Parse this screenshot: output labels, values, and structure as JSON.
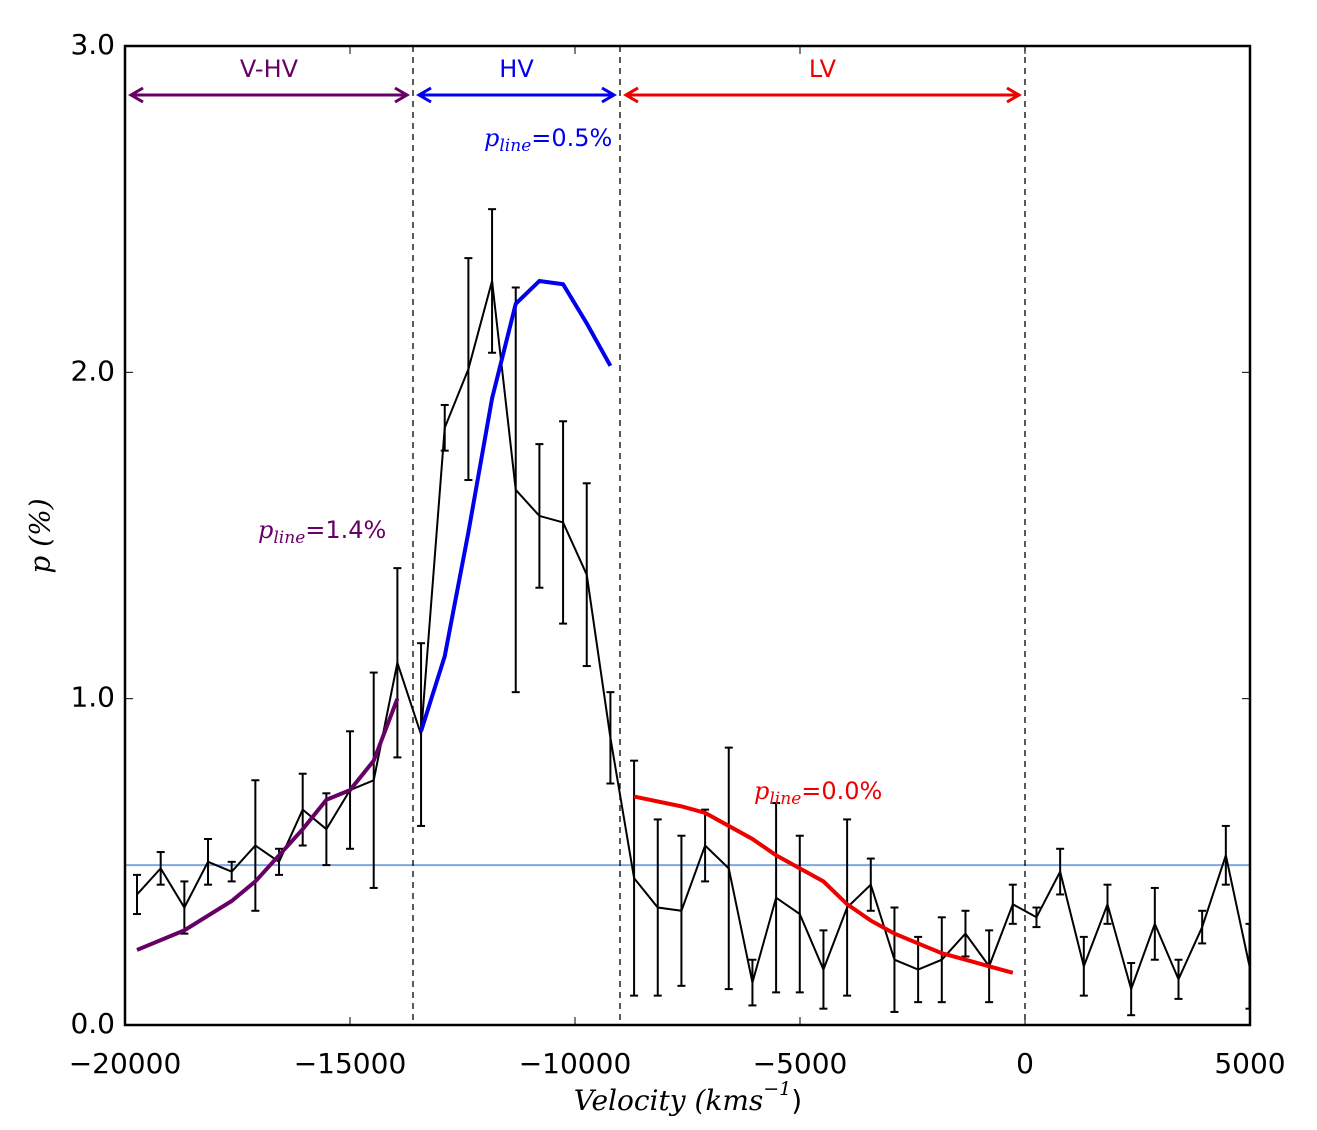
{
  "chart_data": {
    "type": "line",
    "xlabel": {
      "text": "Velocity (kms",
      "superscript": "−1",
      "tail": ")"
    },
    "ylabel": "p (%)",
    "xlim": [
      -20000,
      5000
    ],
    "ylim": [
      0,
      3
    ],
    "xticks": [
      {
        "value": -20000,
        "label": "−20000"
      },
      {
        "value": -15000,
        "label": "−15000"
      },
      {
        "value": -10000,
        "label": "−10000"
      },
      {
        "value": -5000,
        "label": "−5000"
      },
      0,
      5000
    ],
    "yticks": [
      {
        "value": 0,
        "label": "0.0"
      },
      {
        "value": 1,
        "label": "1.0"
      },
      {
        "value": 2,
        "label": "2.0"
      },
      {
        "value": 3,
        "label": "3.0"
      }
    ],
    "observed": {
      "color": "#000000",
      "x": [
        -19733,
        -19207,
        -18681,
        -18155,
        -17629,
        -17103,
        -16577,
        -16051,
        -15525,
        -14999,
        -14473,
        -13947,
        -13421,
        -12895,
        -12369,
        -11843,
        -11317,
        -10791,
        -10265,
        -9739,
        -9213,
        -8687,
        -8161,
        -7635,
        -7109,
        -6583,
        -6057,
        -5531,
        -5005,
        -4479,
        -3953,
        -3427,
        -2901,
        -2375,
        -1849,
        -1323,
        -797,
        -271,
        255,
        781,
        1307,
        1833,
        2359,
        2885,
        3411,
        3937,
        4463,
        4989
      ],
      "values": [
        0.4,
        0.48,
        0.36,
        0.5,
        0.47,
        0.55,
        0.5,
        0.66,
        0.6,
        0.72,
        0.75,
        1.11,
        0.89,
        1.83,
        2.01,
        2.28,
        1.64,
        1.56,
        1.54,
        1.38,
        0.88,
        0.45,
        0.36,
        0.35,
        0.55,
        0.48,
        0.13,
        0.39,
        0.34,
        0.17,
        0.36,
        0.43,
        0.2,
        0.17,
        0.2,
        0.28,
        0.18,
        0.37,
        0.33,
        0.47,
        0.18,
        0.37,
        0.11,
        0.31,
        0.14,
        0.3,
        0.52,
        0.18
      ],
      "errors": [
        0.06,
        0.05,
        0.08,
        0.07,
        0.03,
        0.2,
        0.04,
        0.11,
        0.11,
        0.18,
        0.33,
        0.29,
        0.28,
        0.07,
        0.34,
        0.22,
        0.62,
        0.22,
        0.31,
        0.28,
        0.14,
        0.36,
        0.27,
        0.23,
        0.11,
        0.37,
        0.07,
        0.29,
        0.24,
        0.12,
        0.27,
        0.08,
        0.16,
        0.1,
        0.13,
        0.07,
        0.11,
        0.06,
        0.03,
        0.07,
        0.09,
        0.06,
        0.08,
        0.11,
        0.06,
        0.05,
        0.09,
        0.13
      ]
    },
    "models": [
      {
        "color": "#660066",
        "x": [
          -19733,
          -18681,
          -17629,
          -17103,
          -16577,
          -16051,
          -15525,
          -14999,
          -14473,
          -13947
        ],
        "values": [
          0.23,
          0.29,
          0.38,
          0.44,
          0.52,
          0.6,
          0.69,
          0.72,
          0.81,
          1.0
        ]
      },
      {
        "color": "#0000ee",
        "x": [
          -13421,
          -12895,
          -12369,
          -11843,
          -11317,
          -10791,
          -10265,
          -9739,
          -9213
        ],
        "values": [
          0.9,
          1.13,
          1.51,
          1.92,
          2.21,
          2.28,
          2.27,
          2.15,
          2.02
        ]
      },
      {
        "color": "#ee0000",
        "x": [
          -8687,
          -7635,
          -7109,
          -6583,
          -6057,
          -5531,
          -5005,
          -4479,
          -3953,
          -3427,
          -2901,
          -2375,
          -1849,
          -1323,
          -797,
          -271
        ],
        "values": [
          0.7,
          0.67,
          0.65,
          0.61,
          0.57,
          0.52,
          0.48,
          0.44,
          0.37,
          0.32,
          0.28,
          0.25,
          0.22,
          0.2,
          0.18,
          0.16
        ]
      }
    ],
    "hline": {
      "value": 0.49,
      "color": "#7fa8e0"
    },
    "vlines": [
      -13600,
      -9000,
      0
    ],
    "regions": [
      {
        "label": "V-HV",
        "color": "#660066"
      },
      {
        "label": "HV",
        "color": "#0000ee"
      },
      {
        "label": "LV",
        "color": "#ee0000"
      }
    ],
    "annotations": [
      {
        "symbol": "p",
        "subscript": "line",
        "text": "=1.4%",
        "color": "#660066"
      },
      {
        "symbol": "p",
        "subscript": "line",
        "text": "=0.5%",
        "color": "#0000ee"
      },
      {
        "symbol": "p",
        "subscript": "line",
        "text": "=0.0%",
        "color": "#ee0000"
      }
    ]
  }
}
